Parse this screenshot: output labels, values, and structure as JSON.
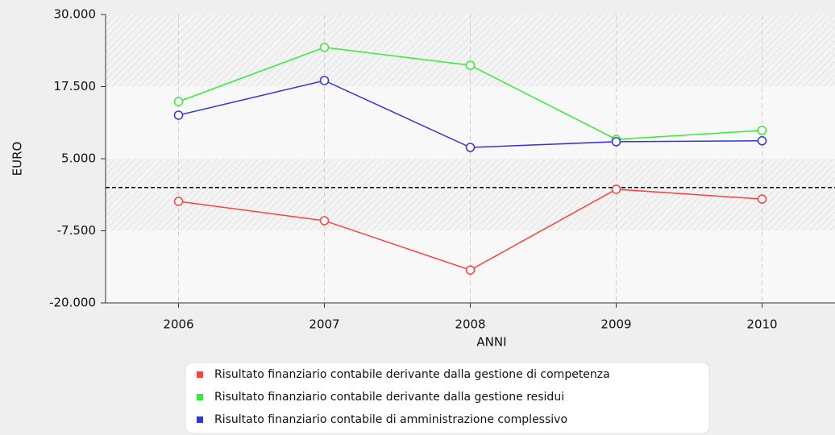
{
  "chart_data": {
    "type": "line",
    "categories": [
      "2006",
      "2007",
      "2008",
      "2009",
      "2010"
    ],
    "x_label": "ANNI",
    "y_label": "EURO",
    "ylim": [
      -20000,
      30000
    ],
    "yticks": [
      {
        "value": -20000,
        "label": "-20.000"
      },
      {
        "value": -7500,
        "label": "-7.500"
      },
      {
        "value": 5000,
        "label": "5.000"
      },
      {
        "value": 17500,
        "label": "17.500"
      },
      {
        "value": 30000,
        "label": "30.000"
      }
    ],
    "grid": true,
    "zero_line": true,
    "series": [
      {
        "name": "Risultato finanziario contabile derivante dalla gestione di competenza",
        "color": "#ff4040",
        "values": [
          -2400,
          -5750,
          -14300,
          -300,
          -2000
        ]
      },
      {
        "name": "Risultato finanziario contabile derivante dalla gestione residui",
        "color": "#33ee33",
        "values": [
          14900,
          24300,
          21200,
          8350,
          9900
        ]
      },
      {
        "name": "Risultato finanziario contabile di amministrazione complessivo",
        "color": "#3333dd",
        "values": [
          12550,
          18550,
          6950,
          7950,
          8100
        ]
      }
    ]
  }
}
